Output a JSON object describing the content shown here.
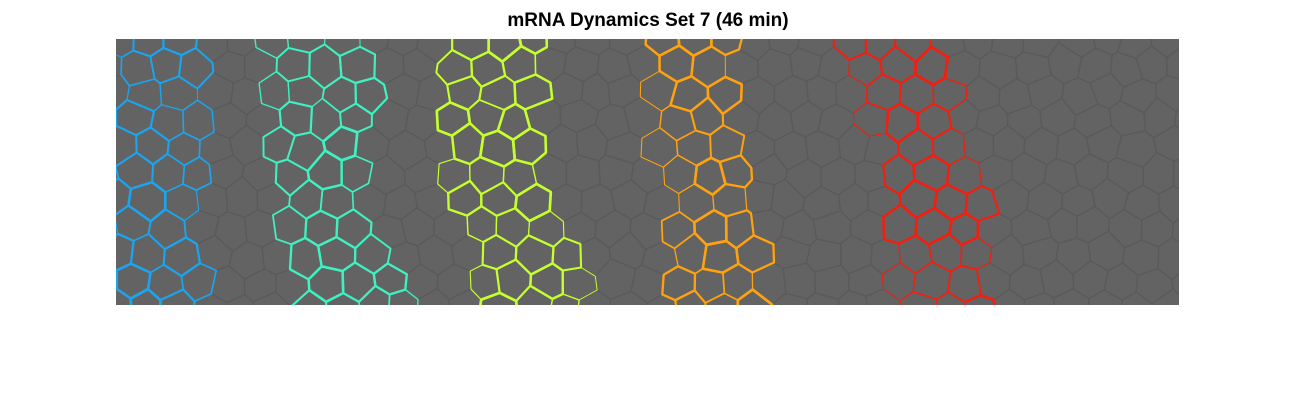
{
  "figure": {
    "title": "mRNA Dynamics Set 7 (46 min)"
  },
  "colors": {
    "figure_background": "#ffffff",
    "tissue_background": "#636363",
    "background_cell_edges": "#5a5a5a",
    "stripe_1": "#1aa5f0",
    "stripe_2": "#3ff0c0",
    "stripe_3": "#c5ff2e",
    "stripe_4": "#ffa20f",
    "stripe_5": "#f41e10"
  },
  "stripes": [
    {
      "name": "stripe-1",
      "color_key": "stripe_1"
    },
    {
      "name": "stripe-2",
      "color_key": "stripe_2"
    },
    {
      "name": "stripe-3",
      "color_key": "stripe_3"
    },
    {
      "name": "stripe-4",
      "color_key": "stripe_4"
    },
    {
      "name": "stripe-5",
      "color_key": "stripe_5"
    }
  ]
}
